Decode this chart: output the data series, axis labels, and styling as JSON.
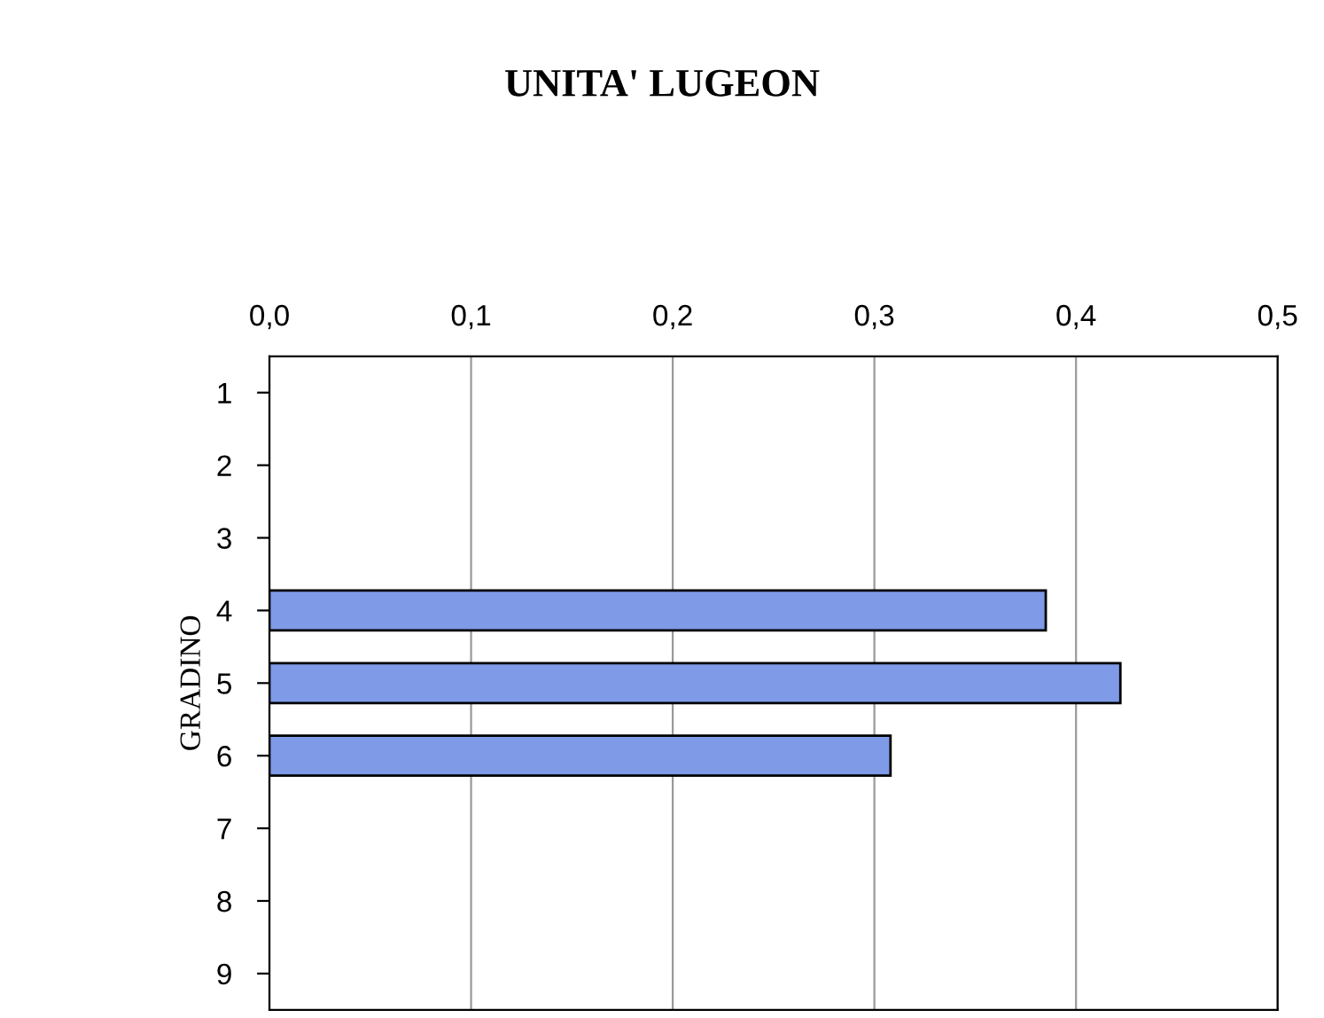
{
  "chart_data": {
    "type": "bar",
    "orientation": "horizontal",
    "title": "UNITA' LUGEON",
    "ylabel": "GRADINO",
    "categories": [
      "1",
      "2",
      "3",
      "4",
      "5",
      "6",
      "7",
      "8",
      "9"
    ],
    "values": [
      null,
      null,
      null,
      0.385,
      0.422,
      0.308,
      null,
      null,
      null
    ],
    "color": "#7f9ae6",
    "xlim": [
      0,
      0.5
    ],
    "xticks": [
      {
        "value": 0,
        "label": "0,0"
      },
      {
        "value": 0.1,
        "label": "0,1"
      },
      {
        "value": 0.2,
        "label": "0,2"
      },
      {
        "value": 0.3,
        "label": "0,3"
      },
      {
        "value": 0.4,
        "label": "0,4"
      },
      {
        "value": 0.5,
        "label": "0,5"
      }
    ],
    "grid": "x"
  }
}
